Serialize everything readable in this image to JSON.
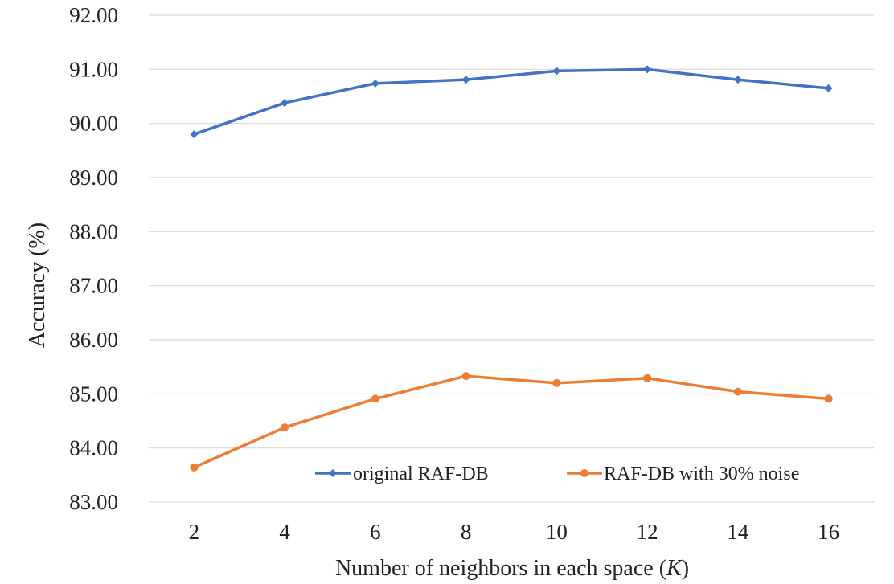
{
  "chart_data": {
    "type": "line",
    "title": "",
    "xlabel": "Number of neighbors in each space (K)",
    "xlabel_prefix": "Number of neighbors in each space (",
    "xlabel_var": "K",
    "xlabel_suffix": ")",
    "ylabel": "Accuracy (%)",
    "x": [
      2,
      4,
      6,
      8,
      10,
      12,
      14,
      16
    ],
    "x_tick_labels": [
      "2",
      "4",
      "6",
      "8",
      "10",
      "12",
      "14",
      "16"
    ],
    "ylim": [
      83,
      92
    ],
    "y_ticks": [
      83,
      84,
      85,
      86,
      87,
      88,
      89,
      90,
      91,
      92
    ],
    "y_tick_labels": [
      "83.00",
      "84.00",
      "85.00",
      "86.00",
      "87.00",
      "88.00",
      "89.00",
      "90.00",
      "91.00",
      "92.00"
    ],
    "grid": true,
    "legend_position": "bottom-right",
    "series": [
      {
        "name": "original RAF-DB",
        "color": "#4472c4",
        "marker": "diamond",
        "values": [
          89.8,
          90.38,
          90.74,
          90.81,
          90.97,
          91.0,
          90.81,
          90.65
        ]
      },
      {
        "name": "RAF-DB with 30% noise",
        "color": "#ed7d31",
        "marker": "circle",
        "values": [
          83.64,
          84.38,
          84.91,
          85.33,
          85.2,
          85.29,
          85.04,
          84.91
        ]
      }
    ]
  }
}
